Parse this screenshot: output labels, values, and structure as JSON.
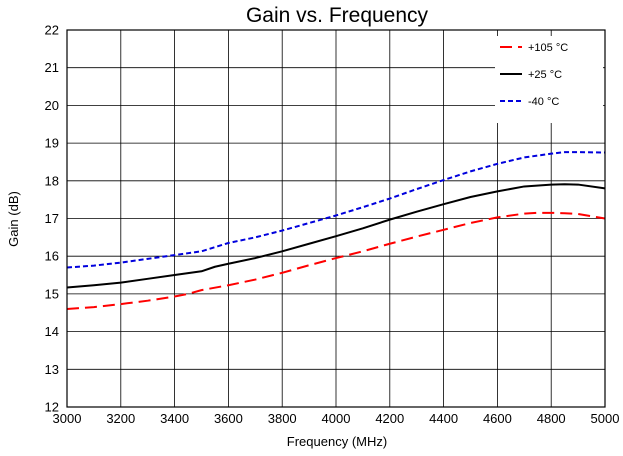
{
  "chart_data": {
    "type": "line",
    "title": "Gain vs. Frequency",
    "xlabel": "Frequency (MHz)",
    "ylabel": "Gain (dB)",
    "xlim": [
      3000,
      5000
    ],
    "ylim": [
      12,
      22
    ],
    "xticks": [
      3000,
      3200,
      3400,
      3600,
      3800,
      4000,
      4200,
      4400,
      4600,
      4800,
      5000
    ],
    "yticks": [
      12,
      13,
      14,
      15,
      16,
      17,
      18,
      19,
      20,
      21,
      22
    ],
    "grid": true,
    "legend_position": "top-right",
    "series": [
      {
        "name": "+105 °C",
        "color": "#ff0000",
        "dash": "dashed",
        "x": [
          3000,
          3100,
          3200,
          3300,
          3400,
          3450,
          3500,
          3600,
          3700,
          3800,
          3900,
          4000,
          4100,
          4200,
          4300,
          4400,
          4500,
          4600,
          4700,
          4750,
          4800,
          4850,
          4900,
          5000
        ],
        "y": [
          14.6,
          14.65,
          14.73,
          14.82,
          14.93,
          15.0,
          15.1,
          15.23,
          15.38,
          15.56,
          15.76,
          15.95,
          16.13,
          16.33,
          16.52,
          16.7,
          16.88,
          17.03,
          17.13,
          17.15,
          17.15,
          17.14,
          17.12,
          17.0
        ]
      },
      {
        "name": "+25 °C",
        "color": "#000000",
        "dash": "solid",
        "x": [
          3000,
          3100,
          3200,
          3300,
          3400,
          3450,
          3500,
          3550,
          3600,
          3700,
          3800,
          3900,
          4000,
          4100,
          4200,
          4300,
          4400,
          4500,
          4600,
          4700,
          4800,
          4850,
          4900,
          5000
        ],
        "y": [
          15.17,
          15.23,
          15.3,
          15.4,
          15.5,
          15.55,
          15.6,
          15.72,
          15.8,
          15.95,
          16.13,
          16.33,
          16.53,
          16.74,
          16.97,
          17.18,
          17.38,
          17.57,
          17.72,
          17.85,
          17.9,
          17.91,
          17.9,
          17.8
        ]
      },
      {
        "name": "-40 °C",
        "color": "#0000dd",
        "dash": "dotted",
        "x": [
          3000,
          3100,
          3200,
          3300,
          3400,
          3450,
          3500,
          3550,
          3600,
          3700,
          3800,
          3900,
          4000,
          4100,
          4200,
          4300,
          4400,
          4500,
          4600,
          4700,
          4800,
          4850,
          4900,
          5000
        ],
        "y": [
          15.7,
          15.75,
          15.83,
          15.93,
          16.03,
          16.08,
          16.13,
          16.24,
          16.35,
          16.5,
          16.68,
          16.88,
          17.08,
          17.3,
          17.53,
          17.78,
          18.02,
          18.25,
          18.45,
          18.62,
          18.72,
          18.76,
          18.76,
          18.75
        ]
      }
    ]
  }
}
